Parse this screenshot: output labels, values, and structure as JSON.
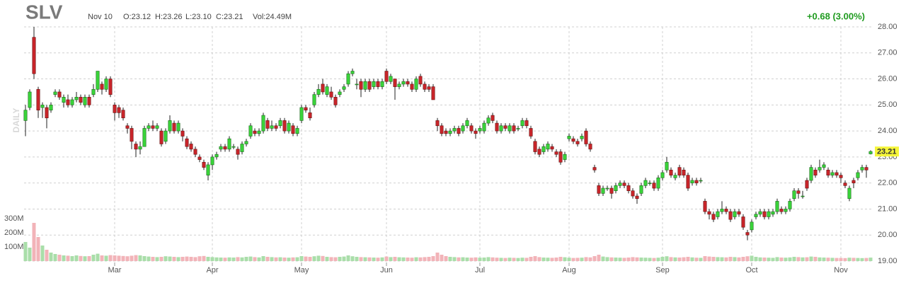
{
  "chart_data": {
    "type": "candlestick",
    "header": {
      "symbol": "SLV",
      "date": "Nov 10",
      "open": "O:23.12",
      "high": "H:23.26",
      "low": "L:23.10",
      "close": "C:23.21",
      "volume": "Vol:24.49M",
      "change": "+0.68 (3.00%)",
      "timeframe": "DAILY",
      "last_price": "23.21"
    },
    "categories": [
      null,
      null,
      null,
      null,
      null,
      null,
      null,
      null,
      null,
      null,
      null,
      null,
      null,
      null,
      null,
      null,
      null,
      null,
      null,
      null,
      null,
      "Mar",
      null,
      null,
      null,
      null,
      null,
      null,
      null,
      null,
      null,
      null,
      null,
      null,
      null,
      null,
      null,
      null,
      null,
      null,
      null,
      null,
      null,
      null,
      "Apr",
      null,
      null,
      null,
      null,
      null,
      null,
      null,
      null,
      null,
      null,
      null,
      null,
      null,
      null,
      null,
      null,
      null,
      null,
      null,
      null,
      "May",
      null,
      null,
      null,
      null,
      null,
      null,
      null,
      null,
      null,
      null,
      null,
      null,
      null,
      null,
      null,
      null,
      null,
      null,
      null,
      "Jun",
      null,
      null,
      null,
      null,
      null,
      null,
      null,
      null,
      null,
      null,
      null,
      null,
      null,
      null,
      null,
      null,
      null,
      null,
      null,
      null,
      null,
      "Jul",
      null,
      null,
      null,
      null,
      null,
      null,
      null,
      null,
      null,
      null,
      null,
      null,
      null,
      null,
      null,
      null,
      null,
      null,
      null,
      null,
      "Aug",
      null,
      null,
      null,
      null,
      null,
      null,
      null,
      null,
      null,
      null,
      null,
      null,
      null,
      null,
      null,
      null,
      null,
      null,
      null,
      null,
      null,
      "Sep",
      null,
      null,
      null,
      null,
      null,
      null,
      null,
      null,
      null,
      null,
      null,
      null,
      null,
      null,
      null,
      null,
      null,
      null,
      null,
      null,
      "Oct",
      null,
      null,
      null,
      null,
      null,
      null,
      null,
      null,
      null,
      null,
      null,
      null,
      null,
      null,
      null,
      null,
      null,
      null,
      null,
      null,
      "Nov",
      null,
      null,
      null,
      null,
      null,
      null,
      null
    ],
    "open": [
      24.4,
      24.9,
      27.6,
      25.6,
      24.9,
      24.9,
      24.8,
      25.4,
      25.5,
      25.1,
      25.2,
      25.0,
      25.2,
      25.3,
      25.0,
      25.3,
      25.4,
      25.6,
      25.8,
      25.6,
      26.0,
      25.0,
      24.9,
      24.8,
      24.2,
      24.1,
      23.5,
      23.3,
      23.4,
      24.1,
      24.2,
      24.1,
      24.0,
      23.6,
      24.0,
      24.3,
      24.0,
      24.0,
      23.7,
      23.5,
      23.3,
      23.0,
      22.8,
      22.3,
      22.7,
      23.0,
      23.3,
      23.4,
      23.3,
      23.4,
      23.3,
      23.2,
      23.5,
      23.8,
      24.0,
      23.9,
      24.0,
      24.4,
      24.1,
      24.2,
      24.2,
      24.4,
      24.0,
      24.2,
      23.9,
      24.4,
      24.9,
      24.7,
      25.0,
      25.4,
      25.8,
      25.4,
      25.5,
      25.3,
      25.4,
      25.6,
      25.8,
      26.2,
      25.8,
      25.9,
      25.6,
      25.9,
      25.7,
      25.9,
      25.7,
      26.3,
      25.9,
      26.0,
      25.7,
      25.8,
      25.9,
      25.8,
      25.6,
      26.1,
      25.8,
      25.7,
      25.7,
      24.4,
      24.2,
      24.0,
      23.9,
      24.0,
      24.1,
      24.0,
      24.2,
      24.2,
      24.0,
      24.0,
      24.0,
      24.3,
      24.6,
      24.3,
      24.0,
      24.2,
      24.0,
      24.2,
      24.1,
      24.2,
      24.4,
      24.1,
      23.6,
      23.3,
      23.2,
      23.3,
      23.4,
      23.2,
      23.2,
      22.9,
      23.7,
      23.7,
      23.6,
      23.7,
      24.0,
      23.5,
      22.6,
      21.9,
      21.6,
      21.8,
      21.8,
      21.7,
      21.9,
      22.0,
      21.9,
      21.7,
      21.5,
      21.6,
      21.9,
      22.0,
      22.0,
      21.8,
      22.2,
      22.5,
      22.5,
      22.2,
      22.6,
      22.5,
      22.3,
      22.0,
      22.1,
      22.1,
      21.3,
      20.9,
      20.8,
      20.7,
      20.9,
      21.0,
      20.9,
      20.7,
      20.9,
      20.7,
      20.1,
      20.2,
      20.7,
      20.8,
      20.9,
      20.7,
      20.8,
      20.9,
      21.0,
      20.9,
      21.0,
      21.4,
      21.7,
      21.5,
      22.1,
      22.1,
      22.5,
      22.5,
      22.6,
      22.5,
      22.3,
      22.4,
      22.3,
      22.0,
      21.4,
      22.1,
      22.2,
      22.5,
      22.6,
      23.12
    ],
    "high": [
      25.0,
      25.6,
      28.0,
      25.7,
      25.1,
      25.0,
      25.1,
      25.6,
      25.6,
      25.4,
      25.4,
      25.3,
      25.5,
      25.4,
      25.4,
      25.4,
      25.8,
      26.3,
      25.9,
      26.1,
      26.1,
      25.1,
      25.0,
      24.9,
      24.3,
      24.2,
      23.6,
      23.6,
      24.2,
      24.3,
      24.4,
      24.3,
      24.1,
      24.1,
      24.6,
      24.4,
      24.4,
      24.1,
      23.8,
      23.6,
      23.4,
      23.1,
      22.9,
      22.8,
      23.1,
      23.2,
      23.5,
      23.5,
      23.8,
      23.5,
      23.4,
      23.6,
      23.7,
      24.3,
      24.1,
      24.1,
      24.7,
      24.5,
      24.4,
      24.3,
      24.5,
      24.5,
      24.4,
      24.3,
      24.2,
      25.0,
      25.0,
      24.9,
      25.5,
      25.8,
      26.0,
      25.8,
      25.7,
      25.4,
      25.6,
      25.8,
      26.3,
      26.4,
      26.0,
      26.0,
      26.0,
      26.0,
      26.0,
      26.0,
      26.0,
      26.4,
      26.2,
      26.0,
      25.9,
      26.0,
      26.0,
      25.9,
      26.1,
      26.2,
      25.9,
      25.8,
      25.8,
      24.5,
      24.3,
      24.1,
      24.1,
      24.2,
      24.2,
      24.3,
      24.5,
      24.3,
      24.1,
      24.2,
      24.4,
      24.6,
      24.7,
      24.4,
      24.3,
      24.3,
      24.3,
      24.3,
      24.2,
      24.5,
      24.5,
      24.2,
      23.7,
      23.4,
      23.5,
      23.6,
      23.5,
      23.3,
      23.3,
      23.2,
      23.9,
      23.8,
      23.7,
      23.9,
      24.1,
      23.6,
      22.7,
      22.0,
      21.9,
      21.9,
      21.9,
      22.0,
      22.1,
      22.1,
      22.0,
      21.8,
      21.6,
      22.0,
      22.2,
      22.1,
      22.1,
      22.3,
      22.5,
      23.0,
      22.6,
      22.4,
      22.7,
      22.6,
      22.4,
      22.2,
      22.2,
      22.2,
      21.4,
      21.0,
      20.9,
      21.0,
      21.3,
      21.1,
      21.0,
      21.0,
      21.0,
      20.8,
      20.2,
      20.6,
      20.9,
      21.0,
      21.0,
      21.0,
      21.0,
      21.4,
      21.1,
      21.1,
      21.4,
      21.8,
      21.8,
      21.7,
      22.2,
      22.7,
      22.6,
      22.9,
      22.8,
      22.6,
      22.5,
      22.5,
      22.4,
      22.1,
      21.9,
      22.2,
      22.5,
      22.7,
      22.7,
      23.26
    ],
    "low": [
      23.8,
      24.8,
      26.0,
      24.5,
      24.5,
      24.1,
      24.7,
      25.3,
      25.2,
      24.9,
      24.9,
      24.9,
      25.1,
      25.0,
      24.9,
      24.9,
      25.3,
      25.5,
      25.4,
      25.5,
      25.3,
      24.4,
      24.5,
      24.4,
      23.9,
      23.3,
      23.0,
      23.1,
      23.4,
      24.0,
      24.0,
      24.0,
      23.4,
      23.5,
      23.9,
      23.9,
      23.9,
      23.6,
      23.3,
      23.2,
      23.0,
      22.8,
      22.5,
      22.1,
      22.5,
      22.9,
      23.2,
      23.2,
      23.2,
      23.3,
      22.9,
      23.1,
      23.4,
      23.7,
      23.8,
      23.8,
      23.9,
      24.0,
      24.0,
      24.0,
      24.1,
      23.9,
      23.9,
      23.8,
      23.8,
      24.3,
      24.7,
      24.4,
      24.9,
      25.3,
      25.4,
      25.3,
      25.2,
      24.9,
      25.3,
      25.5,
      25.7,
      26.1,
      25.6,
      25.3,
      25.5,
      25.5,
      25.6,
      25.6,
      25.6,
      25.8,
      25.8,
      25.2,
      25.6,
      25.7,
      25.7,
      25.5,
      25.5,
      25.7,
      25.5,
      25.5,
      25.2,
      24.0,
      23.8,
      23.8,
      23.8,
      23.9,
      23.8,
      23.9,
      24.1,
      23.9,
      23.7,
      23.9,
      23.9,
      24.2,
      24.3,
      23.9,
      23.9,
      24.0,
      23.9,
      23.9,
      24.0,
      24.1,
      24.1,
      23.7,
      23.1,
      23.0,
      23.1,
      23.2,
      23.2,
      23.0,
      22.7,
      22.8,
      23.6,
      23.5,
      23.4,
      23.6,
      23.4,
      23.2,
      22.4,
      21.5,
      21.5,
      21.7,
      21.4,
      21.6,
      21.8,
      21.8,
      21.6,
      21.4,
      21.2,
      21.5,
      21.8,
      21.9,
      21.7,
      21.7,
      22.1,
      22.4,
      22.2,
      22.1,
      22.2,
      22.2,
      21.7,
      21.9,
      21.9,
      22.0,
      20.8,
      20.6,
      20.5,
      20.6,
      20.8,
      20.8,
      20.5,
      20.6,
      20.7,
      20.2,
      19.8,
      20.1,
      20.6,
      20.7,
      20.6,
      20.6,
      20.7,
      20.8,
      20.8,
      20.8,
      20.9,
      21.3,
      21.4,
      21.4,
      21.7,
      22.0,
      22.2,
      22.4,
      22.5,
      22.2,
      22.2,
      22.2,
      22.0,
      21.8,
      21.3,
      21.8,
      22.1,
      22.4,
      22.2,
      23.1
    ],
    "close": [
      24.8,
      25.5,
      26.2,
      24.8,
      25.0,
      24.5,
      25.0,
      25.5,
      25.3,
      25.3,
      25.0,
      25.2,
      25.3,
      25.1,
      25.3,
      25.0,
      25.6,
      26.3,
      25.6,
      26.0,
      25.4,
      24.7,
      24.7,
      24.5,
      24.1,
      23.6,
      23.3,
      23.4,
      24.1,
      24.2,
      24.1,
      24.2,
      23.5,
      24.0,
      24.4,
      24.0,
      24.3,
      23.8,
      23.4,
      23.3,
      23.1,
      22.9,
      22.6,
      22.7,
      23.0,
      23.1,
      23.4,
      23.3,
      23.7,
      23.4,
      23.1,
      23.5,
      23.6,
      24.2,
      23.9,
      24.0,
      24.6,
      24.1,
      24.2,
      24.1,
      24.4,
      24.0,
      24.3,
      23.9,
      24.1,
      24.9,
      24.8,
      24.5,
      25.4,
      25.6,
      25.5,
      25.7,
      25.3,
      25.0,
      25.5,
      25.7,
      26.2,
      26.3,
      25.8,
      25.6,
      25.9,
      25.6,
      25.9,
      25.7,
      25.9,
      25.9,
      26.1,
      25.7,
      25.8,
      25.9,
      25.8,
      25.6,
      26.0,
      25.8,
      25.6,
      25.6,
      25.2,
      24.2,
      23.9,
      23.9,
      24.0,
      24.1,
      23.9,
      24.2,
      24.4,
      24.0,
      23.9,
      24.1,
      24.3,
      24.5,
      24.4,
      24.0,
      24.2,
      24.1,
      24.2,
      24.0,
      24.1,
      24.4,
      24.2,
      23.8,
      23.2,
      23.1,
      23.4,
      23.5,
      23.3,
      23.1,
      22.8,
      23.1,
      23.8,
      23.6,
      23.5,
      23.8,
      23.5,
      23.3,
      22.5,
      21.6,
      21.8,
      21.8,
      21.6,
      21.9,
      22.0,
      21.9,
      21.7,
      21.5,
      21.4,
      21.9,
      22.1,
      22.0,
      21.8,
      22.2,
      22.4,
      22.8,
      22.3,
      22.3,
      22.3,
      22.3,
      21.8,
      22.1,
      22.0,
      22.1,
      20.9,
      20.8,
      20.6,
      20.9,
      21.0,
      20.9,
      20.6,
      20.9,
      20.8,
      20.3,
      20.0,
      20.5,
      20.8,
      20.9,
      20.7,
      20.9,
      20.9,
      21.3,
      20.9,
      21.0,
      21.3,
      21.7,
      21.6,
      21.5,
      21.8,
      22.6,
      22.3,
      22.6,
      22.7,
      22.3,
      22.4,
      22.3,
      22.2,
      21.9,
      21.8,
      22.0,
      22.4,
      22.6,
      22.5,
      23.21
    ],
    "volume": [
      135,
      95,
      270,
      170,
      110,
      80,
      60,
      50,
      45,
      40,
      38,
      35,
      40,
      36,
      34,
      35,
      45,
      52,
      40,
      38,
      42,
      40,
      38,
      36,
      34,
      38,
      42,
      40,
      35,
      32,
      30,
      28,
      30,
      34,
      32,
      30,
      28,
      30,
      32,
      30,
      28,
      34,
      36,
      30,
      28,
      26,
      25,
      24,
      26,
      25,
      28,
      26,
      30,
      32,
      28,
      26,
      35,
      30,
      28,
      26,
      27,
      25,
      24,
      26,
      27,
      35,
      32,
      30,
      34,
      38,
      36,
      30,
      28,
      27,
      30,
      32,
      40,
      34,
      30,
      28,
      27,
      26,
      25,
      24,
      26,
      32,
      28,
      30,
      27,
      26,
      25,
      24,
      27,
      26,
      28,
      30,
      35,
      60,
      45,
      35,
      30,
      28,
      26,
      27,
      25,
      24,
      26,
      24,
      25,
      28,
      26,
      24,
      23,
      22,
      24,
      23,
      22,
      24,
      23,
      30,
      35,
      28,
      25,
      24,
      23,
      25,
      30,
      27,
      24,
      22,
      23,
      24,
      28,
      26,
      35,
      45,
      32,
      28,
      26,
      25,
      24,
      23,
      25,
      28,
      26,
      25,
      24,
      23,
      22,
      24,
      30,
      34,
      28,
      26,
      25,
      27,
      30,
      26,
      24,
      23,
      35,
      32,
      30,
      28,
      27,
      26,
      30,
      28,
      26,
      30,
      34,
      38,
      30,
      26,
      25,
      24,
      23,
      28,
      25,
      24,
      26,
      30,
      28,
      26,
      27,
      32,
      30,
      26,
      25,
      24,
      23,
      22,
      22,
      21,
      24,
      23,
      22,
      21,
      22,
      24.49
    ],
    "ylim": [
      19,
      28
    ],
    "yticks": [
      {
        "value": 19,
        "label": "19.00"
      },
      {
        "value": 20,
        "label": "20.00"
      },
      {
        "value": 21,
        "label": "21.00"
      },
      {
        "value": 22,
        "label": "22.00"
      },
      {
        "value": 23,
        "label": "23.00"
      },
      {
        "value": 24,
        "label": "24.00"
      },
      {
        "value": 25,
        "label": "25.00"
      },
      {
        "value": 26,
        "label": "26.00"
      },
      {
        "value": 27,
        "label": "27.00"
      },
      {
        "value": 28,
        "label": "28.00"
      }
    ],
    "y2lim": [
      0,
      300
    ],
    "y2ticks": [
      {
        "value": 100,
        "label": "100M"
      },
      {
        "value": 200,
        "label": "200M"
      },
      {
        "value": 300,
        "label": "300M"
      }
    ],
    "grid": true,
    "up_color": "#3ad43a",
    "down_color": "#c9252a",
    "volume_up_color": "#a9dea9",
    "volume_down_color": "#f2b3b8",
    "change_color": "#1f9b1f",
    "last_price_color": "#f5f53a"
  }
}
